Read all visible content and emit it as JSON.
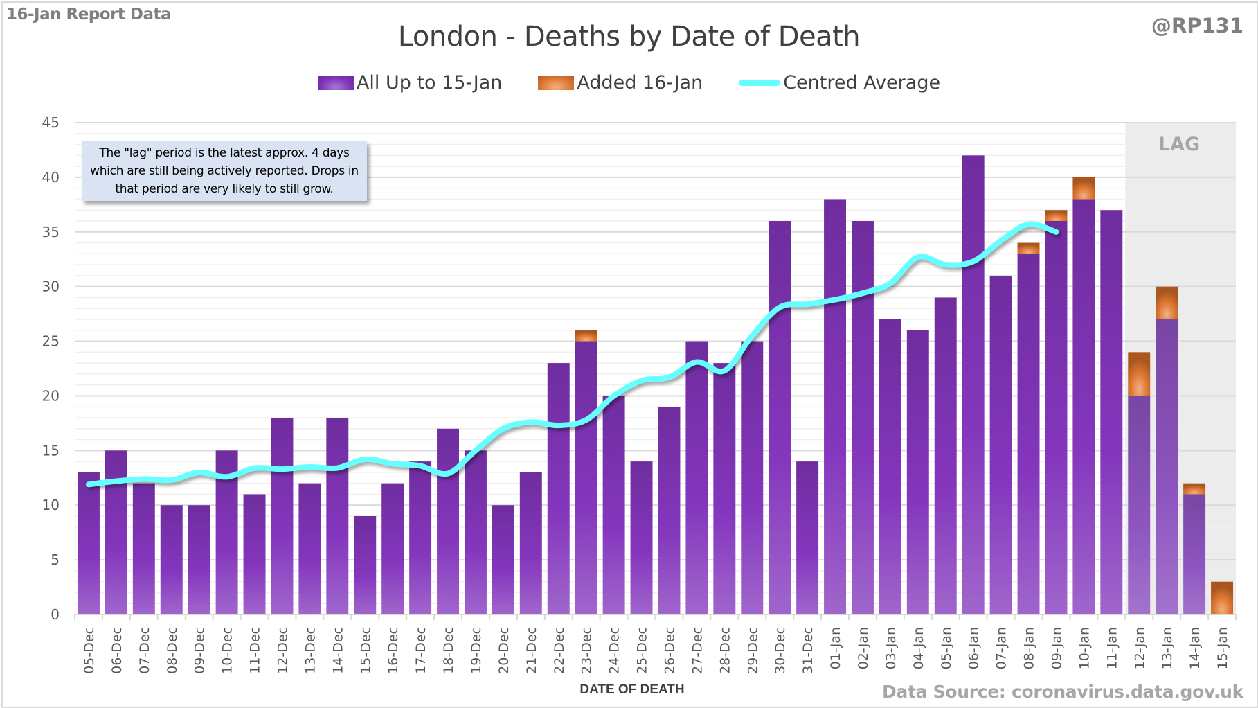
{
  "header": {
    "report_label": "16-Jan Report Data",
    "handle": "@RP131"
  },
  "chart_data": {
    "type": "bar",
    "stacked": true,
    "title": "London - Deaths by Date of Death",
    "xlabel": "DATE OF DEATH",
    "ylabel": "",
    "ylim": [
      0,
      45
    ],
    "yticks": [
      0,
      5,
      10,
      15,
      20,
      25,
      30,
      35,
      40,
      45
    ],
    "grid": true,
    "legend_position": "top-center",
    "categories": [
      "05-Dec",
      "06-Dec",
      "07-Dec",
      "08-Dec",
      "09-Dec",
      "10-Dec",
      "11-Dec",
      "12-Dec",
      "13-Dec",
      "14-Dec",
      "15-Dec",
      "16-Dec",
      "17-Dec",
      "18-Dec",
      "19-Dec",
      "20-Dec",
      "21-Dec",
      "22-Dec",
      "23-Dec",
      "24-Dec",
      "25-Dec",
      "26-Dec",
      "27-Dec",
      "28-Dec",
      "29-Dec",
      "30-Dec",
      "31-Dec",
      "01-Jan",
      "02-Jan",
      "03-Jan",
      "04-Jan",
      "05-Jan",
      "06-Jan",
      "07-Jan",
      "08-Jan",
      "09-Jan",
      "10-Jan",
      "11-Jan",
      "12-Jan",
      "13-Jan",
      "14-Jan",
      "15-Jan"
    ],
    "series": [
      {
        "name": "All Up to 15-Jan",
        "color": "#7d33b8",
        "kind": "bar",
        "values": [
          13,
          15,
          12,
          10,
          10,
          15,
          11,
          18,
          12,
          18,
          9,
          12,
          14,
          17,
          15,
          10,
          13,
          23,
          25,
          20,
          14,
          19,
          25,
          23,
          25,
          36,
          14,
          38,
          36,
          27,
          26,
          29,
          42,
          31,
          33,
          36,
          38,
          37,
          20,
          27,
          11,
          0
        ]
      },
      {
        "name": "Added 16-Jan",
        "color": "#e07a35",
        "kind": "bar",
        "values": [
          0,
          0,
          0,
          0,
          0,
          0,
          0,
          0,
          0,
          0,
          0,
          0,
          0,
          0,
          0,
          0,
          0,
          0,
          1,
          0,
          0,
          0,
          0,
          0,
          0,
          0,
          0,
          0,
          0,
          0,
          0,
          0,
          0,
          0,
          1,
          1,
          2,
          0,
          4,
          3,
          1,
          3
        ]
      },
      {
        "name": "Centred Average",
        "color": "#66ffff",
        "kind": "line",
        "values": [
          11.9,
          12.2,
          12.4,
          12.3,
          13.0,
          12.6,
          13.4,
          13.3,
          13.5,
          13.4,
          14.2,
          13.8,
          13.6,
          12.9,
          15.0,
          17.0,
          17.6,
          17.3,
          17.8,
          20.0,
          21.4,
          21.7,
          23.1,
          22.3,
          25.5,
          28.1,
          28.4,
          28.8,
          29.4,
          30.3,
          32.7,
          32.0,
          32.3,
          34.2,
          35.7,
          35.0,
          null,
          null,
          null,
          null,
          null,
          null
        ]
      }
    ],
    "shaded_region": {
      "label": "LAG",
      "from": "12-Jan",
      "to": "15-Jan"
    },
    "annotation": "The \"lag\" period is the latest approx. 4 days which are still being actively reported.  Drops in that period are very likely to still grow."
  },
  "footer": {
    "source": "Data Source: coronavirus.data.gov.uk"
  }
}
